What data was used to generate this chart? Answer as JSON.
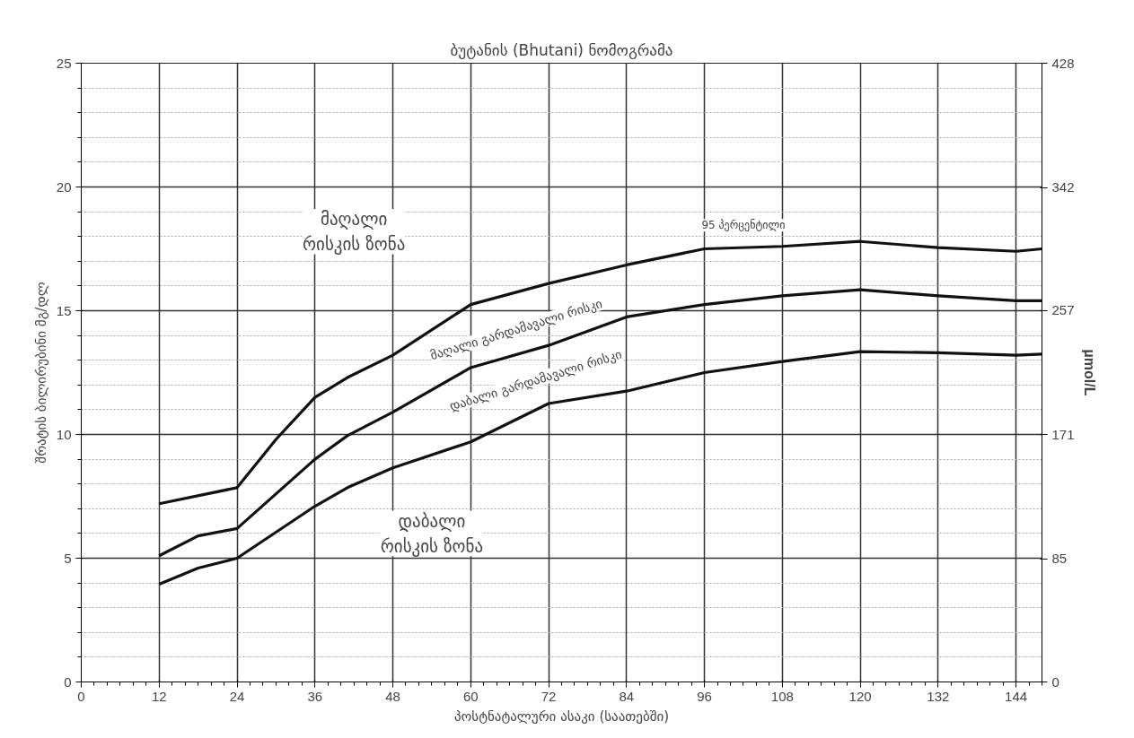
{
  "chart_data": {
    "type": "line",
    "title": "ბუტანის (Bhutani) ნომოგრამა",
    "xlabel": "პოსტნატალური ასაკი (საათებში)",
    "ylabel": "შრატის ბილირუბინი მგ/დლ",
    "y2label": "µmol/L",
    "xlim": [
      0,
      148
    ],
    "xticks": [
      0,
      12,
      24,
      36,
      48,
      60,
      72,
      84,
      96,
      108,
      120,
      132,
      144
    ],
    "ylim": [
      0,
      25
    ],
    "yticks": [
      0,
      5,
      10,
      15,
      20,
      25
    ],
    "y2lim": [
      0,
      428
    ],
    "y2ticks": [
      0,
      85,
      171,
      257,
      342,
      428
    ],
    "grid": true,
    "marker": "none",
    "line_style": "solid",
    "series": [
      {
        "color": "#111111",
        "x": [
          12,
          24,
          30,
          36,
          41,
          48,
          60,
          72,
          84,
          96,
          108,
          120,
          132,
          144,
          148
        ],
        "values": [
          7.2,
          7.85,
          9.8,
          11.5,
          12.3,
          13.2,
          15.25,
          16.1,
          16.85,
          17.5,
          17.6,
          17.8,
          17.55,
          17.4,
          17.5
        ]
      },
      {
        "color": "#111111",
        "x": [
          12,
          18,
          24,
          36,
          41,
          48,
          60,
          72,
          84,
          96,
          108,
          120,
          132,
          144,
          148
        ],
        "values": [
          5.1,
          5.9,
          6.2,
          9.0,
          9.95,
          10.9,
          12.7,
          13.6,
          14.75,
          15.25,
          15.6,
          15.85,
          15.6,
          15.4,
          15.4
        ]
      },
      {
        "color": "#111111",
        "x": [
          12,
          18,
          24,
          36,
          41,
          48,
          60,
          72,
          84,
          96,
          108,
          120,
          132,
          144,
          148
        ],
        "values": [
          3.95,
          4.6,
          5.0,
          7.1,
          7.85,
          8.65,
          9.7,
          11.25,
          11.75,
          12.5,
          12.95,
          13.35,
          13.3,
          13.2,
          13.25
        ]
      }
    ],
    "annotations": [
      "მაღალი\nრისკის ზონა",
      "მაღალი გარდამავალი რისკი",
      "დაბალი გარდამავალი რისკი",
      "დაბალი\nრისკის ზონა",
      "95 პერცენტილი"
    ]
  }
}
